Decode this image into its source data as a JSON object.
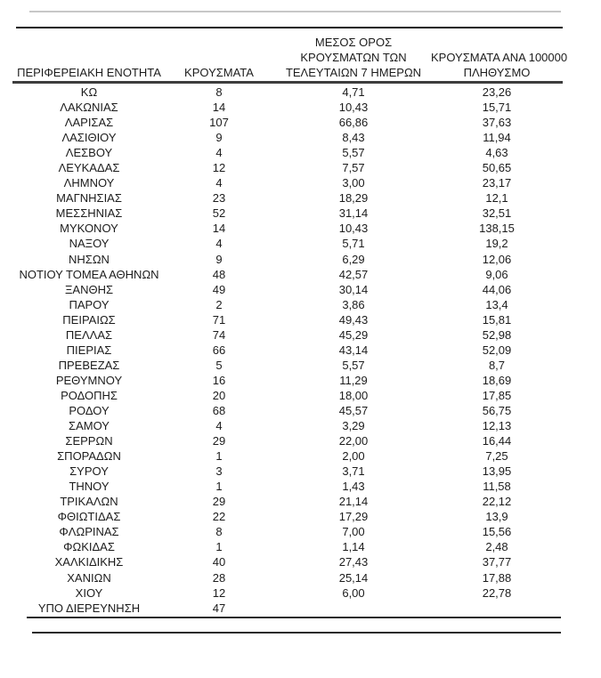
{
  "page": {
    "background": "#ffffff",
    "colors": {
      "text": "#1c1c1c",
      "line_light_gray": "#c7c7c7",
      "line_black": "#141414",
      "line_dark_gray": "#3d3d3d",
      "line_bottom": "#2b2b2b"
    }
  },
  "table": {
    "columns": [
      {
        "id": "region",
        "lines": [
          "ΠΕΡΙΦΕΡΕΙΑΚΗ ΕΝΟΤΗΤΑ"
        ]
      },
      {
        "id": "cases",
        "lines": [
          "ΚΡΟΥΣΜΑΤΑ"
        ]
      },
      {
        "id": "avg7",
        "lines": [
          "ΜΕΣΟΣ ΟΡΟΣ",
          "ΚΡΟΥΣΜΑΤΩΝ ΤΩΝ",
          "ΤΕΛΕΥΤΑΙΩΝ 7 ΗΜΕΡΩΝ"
        ]
      },
      {
        "id": "per100k",
        "lines": [
          "ΚΡΟΥΣΜΑΤΑ ΑΝΑ 100000",
          "ΠΛΗΘΥΣΜΟ"
        ]
      }
    ],
    "rows": [
      {
        "region": "ΚΩ",
        "cases": "8",
        "avg7": "4,71",
        "per100k": "23,26"
      },
      {
        "region": "ΛΑΚΩΝΙΑΣ",
        "cases": "14",
        "avg7": "10,43",
        "per100k": "15,71"
      },
      {
        "region": "ΛΑΡΙΣΑΣ",
        "cases": "107",
        "avg7": "66,86",
        "per100k": "37,63"
      },
      {
        "region": "ΛΑΣΙΘΙΟΥ",
        "cases": "9",
        "avg7": "8,43",
        "per100k": "11,94"
      },
      {
        "region": "ΛΕΣΒΟΥ",
        "cases": "4",
        "avg7": "5,57",
        "per100k": "4,63"
      },
      {
        "region": "ΛΕΥΚΑΔΑΣ",
        "cases": "12",
        "avg7": "7,57",
        "per100k": "50,65"
      },
      {
        "region": "ΛΗΜΝΟΥ",
        "cases": "4",
        "avg7": "3,00",
        "per100k": "23,17"
      },
      {
        "region": "ΜΑΓΝΗΣΙΑΣ",
        "cases": "23",
        "avg7": "18,29",
        "per100k": "12,1"
      },
      {
        "region": "ΜΕΣΣΗΝΙΑΣ",
        "cases": "52",
        "avg7": "31,14",
        "per100k": "32,51"
      },
      {
        "region": "ΜΥΚΟΝΟΥ",
        "cases": "14",
        "avg7": "10,43",
        "per100k": "138,15"
      },
      {
        "region": "ΝΑΞΟΥ",
        "cases": "4",
        "avg7": "5,71",
        "per100k": "19,2"
      },
      {
        "region": "ΝΗΣΩΝ",
        "cases": "9",
        "avg7": "6,29",
        "per100k": "12,06"
      },
      {
        "region": "ΝΟΤΙΟΥ ΤΟΜΕΑ ΑΘΗΝΩΝ",
        "cases": "48",
        "avg7": "42,57",
        "per100k": "9,06"
      },
      {
        "region": "ΞΑΝΘΗΣ",
        "cases": "49",
        "avg7": "30,14",
        "per100k": "44,06"
      },
      {
        "region": "ΠΑΡΟΥ",
        "cases": "2",
        "avg7": "3,86",
        "per100k": "13,4"
      },
      {
        "region": "ΠΕΙΡΑΙΩΣ",
        "cases": "71",
        "avg7": "49,43",
        "per100k": "15,81"
      },
      {
        "region": "ΠΕΛΛΑΣ",
        "cases": "74",
        "avg7": "45,29",
        "per100k": "52,98"
      },
      {
        "region": "ΠΙΕΡΙΑΣ",
        "cases": "66",
        "avg7": "43,14",
        "per100k": "52,09"
      },
      {
        "region": "ΠΡΕΒΕΖΑΣ",
        "cases": "5",
        "avg7": "5,57",
        "per100k": "8,7"
      },
      {
        "region": "ΡΕΘΥΜΝΟΥ",
        "cases": "16",
        "avg7": "11,29",
        "per100k": "18,69"
      },
      {
        "region": "ΡΟΔΟΠΗΣ",
        "cases": "20",
        "avg7": "18,00",
        "per100k": "17,85"
      },
      {
        "region": "ΡΟΔΟΥ",
        "cases": "68",
        "avg7": "45,57",
        "per100k": "56,75"
      },
      {
        "region": "ΣΑΜΟΥ",
        "cases": "4",
        "avg7": "3,29",
        "per100k": "12,13"
      },
      {
        "region": "ΣΕΡΡΩΝ",
        "cases": "29",
        "avg7": "22,00",
        "per100k": "16,44"
      },
      {
        "region": "ΣΠΟΡΑΔΩΝ",
        "cases": "1",
        "avg7": "2,00",
        "per100k": "7,25"
      },
      {
        "region": "ΣΥΡΟΥ",
        "cases": "3",
        "avg7": "3,71",
        "per100k": "13,95"
      },
      {
        "region": "ΤΗΝΟΥ",
        "cases": "1",
        "avg7": "1,43",
        "per100k": "11,58"
      },
      {
        "region": "ΤΡΙΚΑΛΩΝ",
        "cases": "29",
        "avg7": "21,14",
        "per100k": "22,12"
      },
      {
        "region": "ΦΘΙΩΤΙΔΑΣ",
        "cases": "22",
        "avg7": "17,29",
        "per100k": "13,9"
      },
      {
        "region": "ΦΛΩΡΙΝΑΣ",
        "cases": "8",
        "avg7": "7,00",
        "per100k": "15,56"
      },
      {
        "region": "ΦΩΚΙΔΑΣ",
        "cases": "1",
        "avg7": "1,14",
        "per100k": "2,48"
      },
      {
        "region": "ΧΑΛΚΙΔΙΚΗΣ",
        "cases": "40",
        "avg7": "27,43",
        "per100k": "37,77"
      },
      {
        "region": "ΧΑΝΙΩΝ",
        "cases": "28",
        "avg7": "25,14",
        "per100k": "17,88"
      },
      {
        "region": "ΧΙΟΥ",
        "cases": "12",
        "avg7": "6,00",
        "per100k": "22,78"
      },
      {
        "region": "ΥΠΟ ΔΙΕΡΕΥΝΗΣΗ",
        "cases": "47",
        "avg7": "",
        "per100k": ""
      }
    ]
  }
}
